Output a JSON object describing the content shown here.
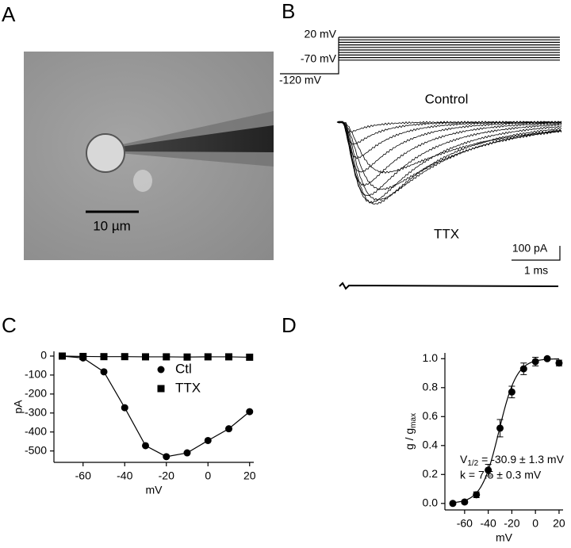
{
  "labels": {
    "panel_a": "A",
    "panel_b": "B",
    "panel_c": "C",
    "panel_d": "D",
    "scale_a": "10 µm",
    "v_top": "20 mV",
    "v_mid": "-70 mV",
    "v_hold": "-120 mV",
    "control": "Control",
    "ttx": "TTX",
    "scale_pa": "100 pA",
    "scale_ms": "1 ms"
  },
  "chart_data": [
    {
      "type": "line",
      "xlabel": "mV",
      "ylabel": "pA",
      "x": [
        -70,
        -60,
        -50,
        -40,
        -30,
        -20,
        -10,
        0,
        10,
        20
      ],
      "series": [
        {
          "name": "Ctl",
          "color": "#000000",
          "marker": "circle",
          "values": [
            0,
            -10,
            -83,
            -272,
            -472,
            -530,
            -510,
            -445,
            -383,
            -293
          ]
        },
        {
          "name": "TTX",
          "color": "#000000",
          "marker": "square",
          "values": [
            0,
            -2,
            -3,
            -3,
            -4,
            -4,
            -5,
            -4,
            -4,
            -6
          ]
        }
      ],
      "xlim": [
        -74,
        22
      ],
      "ylim": [
        -560,
        25
      ],
      "xticks": [
        -60,
        -40,
        -20,
        0,
        20
      ],
      "yticks": [
        0,
        -100,
        -200,
        -300,
        -400,
        -500
      ],
      "legend": "center"
    },
    {
      "type": "errorbar",
      "xlabel": "mV",
      "ylabel": [
        "g / g",
        "max"
      ],
      "x": [
        -70,
        -60,
        -50,
        -40,
        -30,
        -20,
        -10,
        0,
        10,
        20
      ],
      "series": [
        {
          "color": "#000000",
          "marker": "circle",
          "values": [
            0.0,
            0.01,
            0.06,
            0.23,
            0.52,
            0.77,
            0.93,
            0.98,
            1.0,
            0.97
          ],
          "errors": [
            0.01,
            0.01,
            0.02,
            0.04,
            0.06,
            0.04,
            0.04,
            0.03,
            0.01,
            0.02
          ]
        }
      ],
      "fit": {
        "v_half": -30.9,
        "k": 7.5
      },
      "annotation": [
        [
          "V",
          "1/2",
          " = -30.9 ± 1.3 mV"
        ],
        "k = 7.5 ± 0.3 mV"
      ],
      "xlim": [
        -76.7,
        23.4
      ],
      "ylim": [
        -0.045,
        1.04
      ],
      "xticks": [
        -60,
        -40,
        -20,
        0,
        20
      ],
      "yticks": [
        {
          "value": 0,
          "label": "0.0"
        },
        {
          "value": 0.2,
          "label": "0.2"
        },
        {
          "value": 0.4,
          "label": "0.4"
        },
        {
          "value": 0.6,
          "label": "0.6"
        },
        {
          "value": 0.8,
          "label": "0.8"
        },
        {
          "value": 1,
          "label": "1.0"
        }
      ]
    }
  ]
}
